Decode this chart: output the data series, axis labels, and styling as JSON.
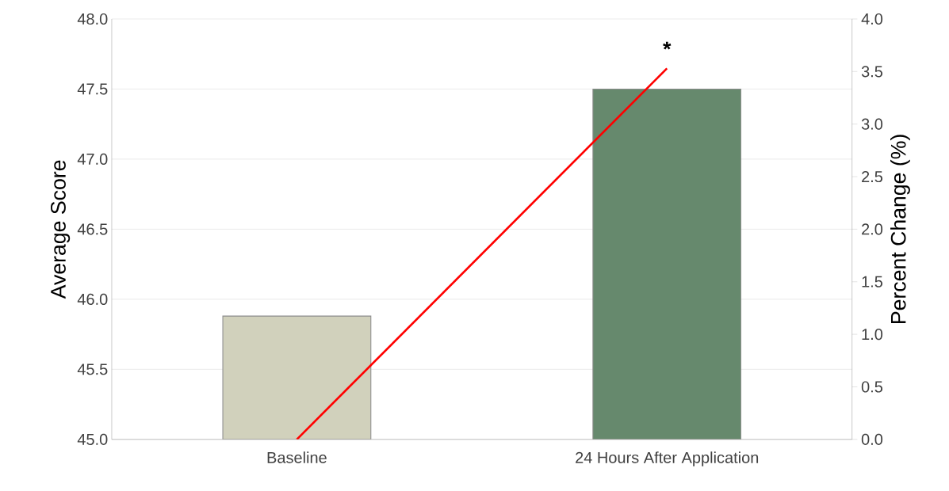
{
  "chart_data": {
    "type": "bar",
    "categories": [
      "Baseline",
      "24 Hours After Application"
    ],
    "series": [
      {
        "colors": [
          "#d1d1bc",
          "#66896d"
        ],
        "values": [
          45.88,
          47.5
        ]
      },
      {
        "type": "line",
        "axis": "y2",
        "color": "#ff0000",
        "values": [
          0.0,
          3.53
        ]
      }
    ],
    "ylabel": "Average Score",
    "y2label": "Percent Change (%)",
    "ylim": [
      45.0,
      48.0
    ],
    "yticks": [
      {
        "value": 45.0,
        "label": "45.0"
      },
      {
        "value": 45.5,
        "label": "45.5"
      },
      {
        "value": 46.0,
        "label": "46.0"
      },
      {
        "value": 46.5,
        "label": "46.5"
      },
      {
        "value": 47.0,
        "label": "47.0"
      },
      {
        "value": 47.5,
        "label": "47.5"
      },
      {
        "value": 48.0,
        "label": "48.0"
      }
    ],
    "y2lim": [
      0.0,
      4.0
    ],
    "y2ticks": [
      {
        "value": 0.0,
        "label": "0.0"
      },
      {
        "value": 0.5,
        "label": "0.5"
      },
      {
        "value": 1.0,
        "label": "1.0"
      },
      {
        "value": 1.5,
        "label": "1.5"
      },
      {
        "value": 2.0,
        "label": "2.0"
      },
      {
        "value": 2.5,
        "label": "2.5"
      },
      {
        "value": 3.0,
        "label": "3.0"
      },
      {
        "value": 3.5,
        "label": "3.5"
      },
      {
        "value": 4.0,
        "label": "4.0"
      }
    ],
    "grid": "y",
    "annotations": [
      "*"
    ]
  }
}
